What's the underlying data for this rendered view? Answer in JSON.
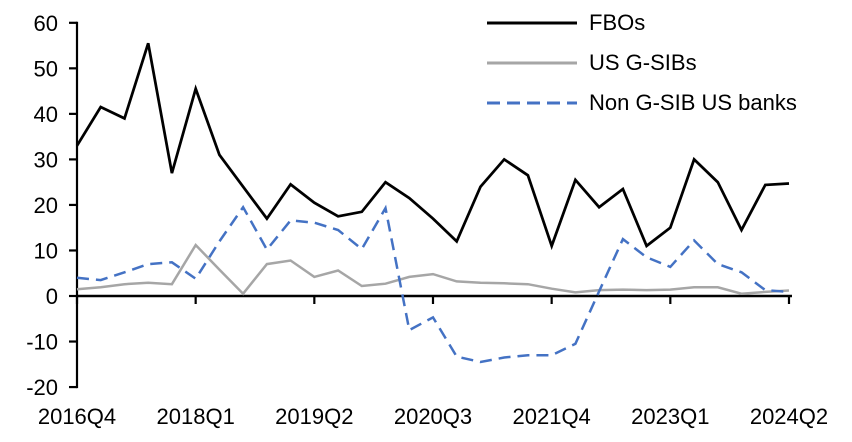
{
  "chart_data": {
    "type": "line",
    "title": "",
    "xlabel": "",
    "ylabel": "",
    "grid": false,
    "legend_position": "top-right",
    "ylim": [
      -20,
      60
    ],
    "y_ticks": [
      60,
      50,
      40,
      30,
      20,
      10,
      0,
      -10,
      -20
    ],
    "x_tick_labels": [
      "2016Q4",
      "2018Q1",
      "2019Q2",
      "2020Q3",
      "2021Q4",
      "2023Q1",
      "2024Q2"
    ],
    "x_tick_indices": [
      0,
      5,
      10,
      15,
      20,
      25,
      30
    ],
    "categories": [
      "2016Q4",
      "2017Q1",
      "2017Q2",
      "2017Q3",
      "2017Q4",
      "2018Q1",
      "2018Q2",
      "2018Q3",
      "2018Q4",
      "2019Q1",
      "2019Q2",
      "2019Q3",
      "2019Q4",
      "2020Q1",
      "2020Q2",
      "2020Q3",
      "2020Q4",
      "2021Q1",
      "2021Q2",
      "2021Q3",
      "2021Q4",
      "2022Q1",
      "2022Q2",
      "2022Q3",
      "2022Q4",
      "2023Q1",
      "2023Q2",
      "2023Q3",
      "2023Q4",
      "2024Q1",
      "2024Q2"
    ],
    "series": [
      {
        "name": "FBOs",
        "color": "#000000",
        "style": "solid",
        "values": [
          33,
          41.5,
          39,
          55.5,
          27,
          45.5,
          31,
          24,
          17,
          24.5,
          20.5,
          17.5,
          18.5,
          25,
          21.5,
          17,
          12,
          24,
          30,
          26.5,
          11,
          25.5,
          19.5,
          23.5,
          11,
          15,
          30,
          25,
          14.5,
          24.4,
          24.7
        ]
      },
      {
        "name": "US G-SIBs",
        "color": "#A6A6A6",
        "style": "solid",
        "values": [
          1.5,
          1.9,
          2.6,
          2.9,
          2.6,
          11.2,
          5.8,
          0.5,
          7,
          7.8,
          4.2,
          5.6,
          2.2,
          2.7,
          4.2,
          4.8,
          3.2,
          2.9,
          2.8,
          2.6,
          1.6,
          0.8,
          1.3,
          1.4,
          1.3,
          1.4,
          1.9,
          1.9,
          0.5,
          0.9,
          1.2
        ]
      },
      {
        "name": "Non G-SIB US banks",
        "color": "#4472C4",
        "style": "dashed",
        "values": [
          4,
          3.5,
          5.2,
          7,
          7.4,
          3.8,
          12,
          19.5,
          10.2,
          16.6,
          16.1,
          14.5,
          10.3,
          19.3,
          -7.5,
          -4.7,
          -13.3,
          -14.5,
          -13.5,
          -13,
          -13,
          -10.5,
          1,
          12.5,
          8.5,
          6.4,
          12.2,
          7,
          5.2,
          1.3,
          0.9
        ]
      }
    ]
  },
  "legend": {
    "items": [
      {
        "label": "FBOs"
      },
      {
        "label": "US G-SIBs"
      },
      {
        "label": "Non G-SIB US banks"
      }
    ]
  }
}
